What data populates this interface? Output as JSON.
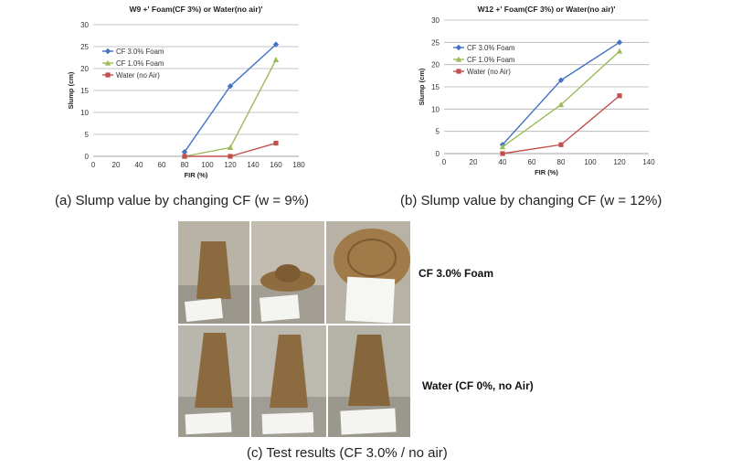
{
  "captions": {
    "a": "(a) Slump value by changing CF (w = 9%)",
    "b": "(b) Slump value by changing CF (w = 12%)",
    "c": "(c) Test results (CF 3.0% / no air)"
  },
  "photo_labels": {
    "foam": "CF 3.0% Foam",
    "water": "Water (CF 0%, no Air)"
  },
  "colors": {
    "cf3": "#4472C4",
    "cf1": "#9BBB59",
    "water": "#C0504D",
    "grid": "#B0B0B0"
  },
  "chart_data": [
    {
      "type": "line",
      "title": "W9 +' Foam(CF 3%) or Water(no air)'",
      "xlabel": "FIR (%)",
      "ylabel": "Slump (cm)",
      "xlim": [
        0,
        180
      ],
      "ylim": [
        0,
        30
      ],
      "xticks": [
        0,
        20,
        40,
        60,
        80,
        100,
        120,
        140,
        160,
        180
      ],
      "yticks": [
        0,
        5,
        10,
        15,
        20,
        25,
        30
      ],
      "grid": "horizontal",
      "legend": "top-left",
      "x": [
        80,
        120,
        160
      ],
      "series": [
        {
          "name": "CF 3.0% Foam",
          "values": [
            1,
            16,
            25.5
          ]
        },
        {
          "name": "CF 1.0% Foam",
          "values": [
            0,
            2,
            22
          ]
        },
        {
          "name": "Water (no Air)",
          "values": [
            0,
            0,
            3
          ]
        }
      ]
    },
    {
      "type": "line",
      "title": "W12 +' Foam(CF 3%) or Water(no air)'",
      "xlabel": "FIR (%)",
      "ylabel": "Slump (cm)",
      "xlim": [
        0,
        140
      ],
      "ylim": [
        0,
        30
      ],
      "xticks": [
        0,
        20,
        40,
        60,
        80,
        100,
        120,
        140
      ],
      "yticks": [
        0,
        5,
        10,
        15,
        20,
        25,
        30
      ],
      "grid": "horizontal",
      "legend": "top-left",
      "x": [
        40,
        80,
        120
      ],
      "series": [
        {
          "name": "CF 3.0% Foam",
          "values": [
            2,
            16.5,
            25
          ]
        },
        {
          "name": "CF 1.0% Foam",
          "values": [
            1.5,
            11,
            23
          ]
        },
        {
          "name": "Water (no Air)",
          "values": [
            0,
            2,
            13
          ]
        }
      ]
    }
  ]
}
